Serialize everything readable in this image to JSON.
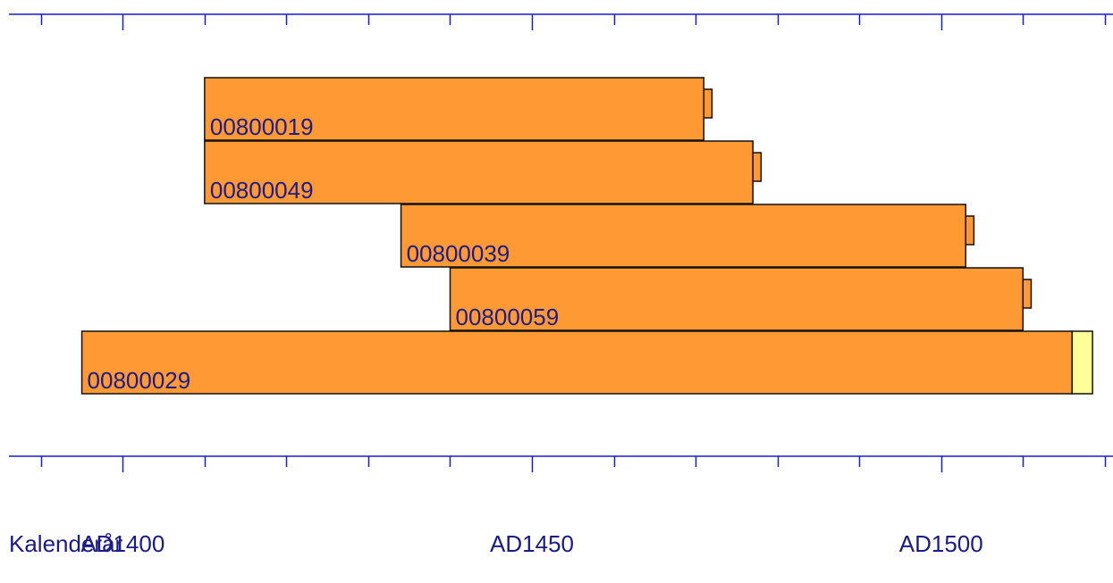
{
  "chart_data": {
    "type": "timeline",
    "x_axis_label": "Kalenderår",
    "x_tick_labels": [
      "AD1400",
      "AD1450",
      "AD1500"
    ],
    "x_range": [
      1385,
      1521
    ],
    "major_tick_step": 50,
    "minor_tick_step": 10,
    "samples": [
      {
        "label": "00800019",
        "start": 1410,
        "end": 1471,
        "hatch_end": 1472
      },
      {
        "label": "00800049",
        "start": 1410,
        "end": 1477,
        "hatch_end": 1478
      },
      {
        "label": "00800039",
        "start": 1434,
        "end": 1503,
        "hatch_end": 1504
      },
      {
        "label": "00800059",
        "start": 1440,
        "end": 1510,
        "hatch_end": 1511
      },
      {
        "label": "00800029",
        "start": 1395,
        "end": 1516,
        "hatch_end": 1518.5
      }
    ],
    "colors": {
      "bar": "#ff9933",
      "bar_border": "#111111",
      "hatch_extension_last": "#ffff99",
      "axis": "#1a1ad0",
      "text": "#1c1c8c"
    }
  }
}
